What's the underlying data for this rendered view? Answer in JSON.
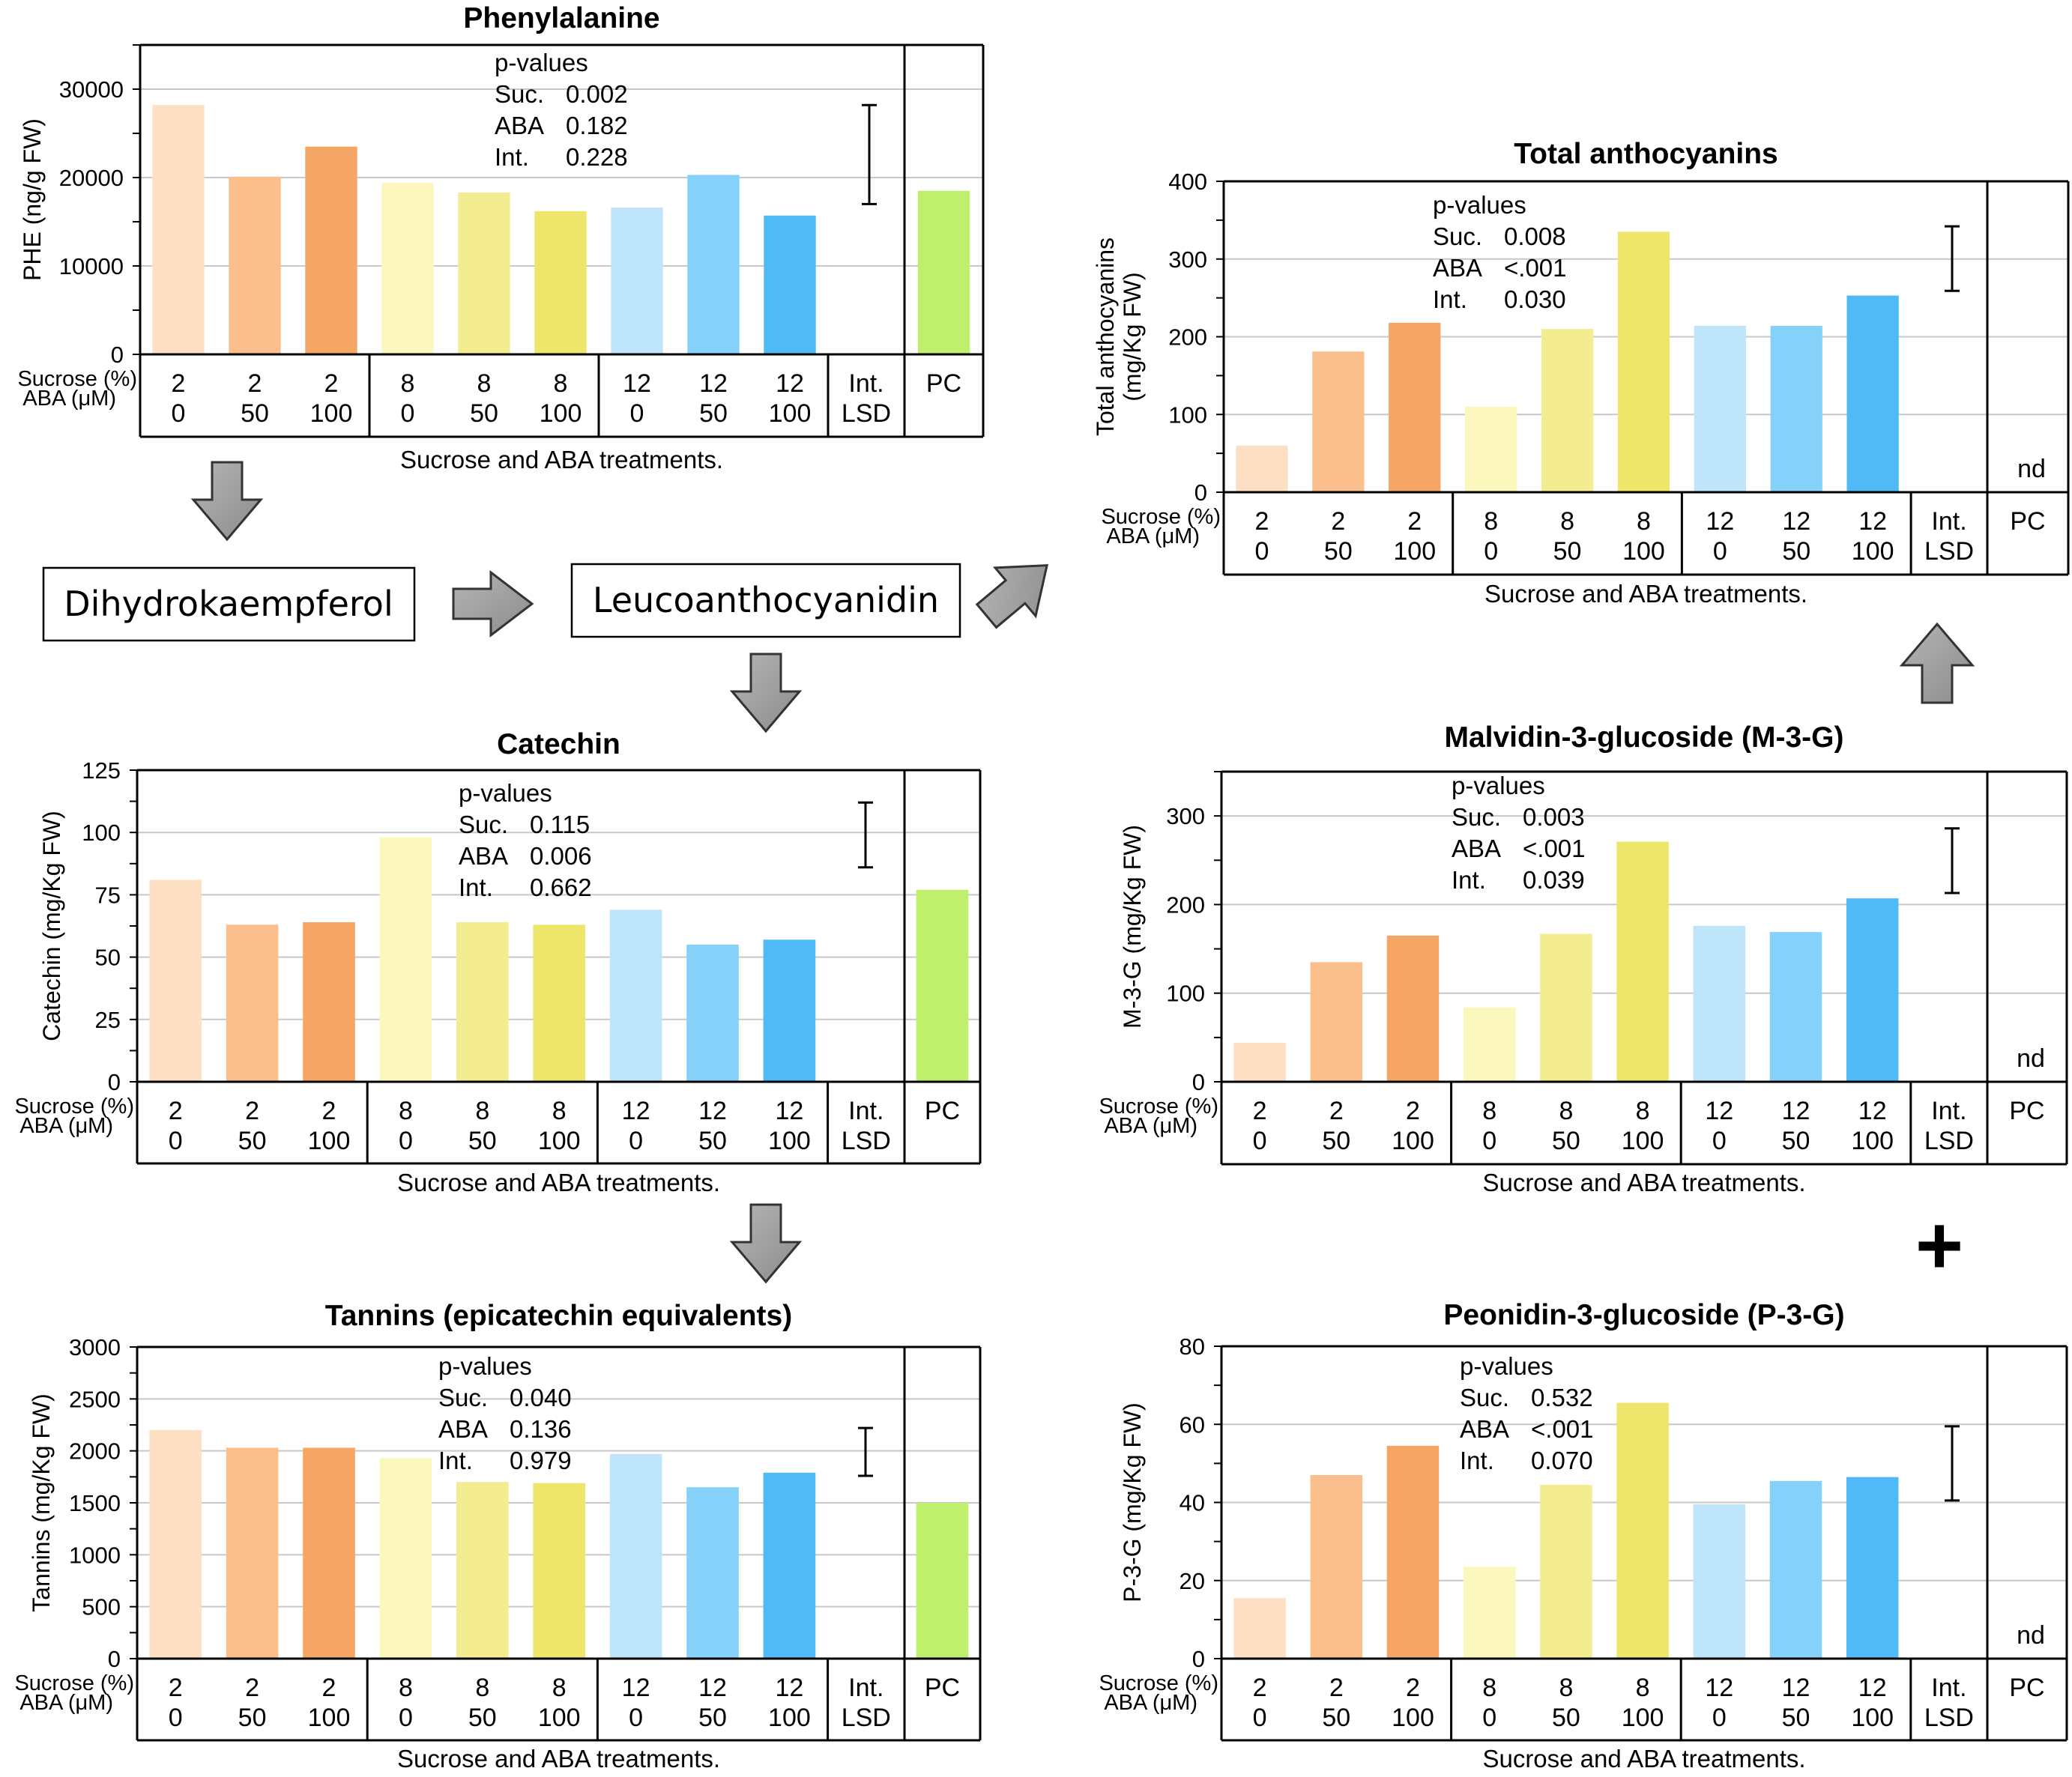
{
  "colors": [
    "#fde0c4",
    "#fbbe8d",
    "#f6a664",
    "#fbf7bd",
    "#f4ec90",
    "#ede66a",
    "#bfe5fa",
    "#86d1fa",
    "#4fbaf5"
  ],
  "pc_color": "#bff06d",
  "pathway": {
    "box1": "Dihydrokaempferol",
    "box2": "Leucoanthocyanidin",
    "plus": "+"
  },
  "treatments": {
    "sucrose_label": "Sucrose (%)",
    "aba_label": "ABA (μM)",
    "xlabel": "Sucrose and ABA treatments.",
    "sucrose": [
      "2",
      "2",
      "2",
      "8",
      "8",
      "8",
      "12",
      "12",
      "12"
    ],
    "aba": [
      "0",
      "50",
      "100",
      "0",
      "50",
      "100",
      "0",
      "50",
      "100"
    ],
    "lsd_top": "Int.",
    "lsd_bottom": "LSD",
    "pc": "PC",
    "nd": "nd"
  },
  "chart_data": [
    {
      "id": "phe",
      "type": "bar",
      "title": "Phenylalanine",
      "ylabel": "PHE (ng/g FW)",
      "ylim": [
        0,
        35000
      ],
      "yticks": [
        "0",
        "10000",
        "20000",
        "30000"
      ],
      "ytick_values": [
        0,
        10000,
        20000,
        30000
      ],
      "values": [
        28200,
        20100,
        23500,
        19400,
        18300,
        16200,
        16600,
        20300,
        15700
      ],
      "pc_value": 18500,
      "lsd": [
        17000,
        28200
      ],
      "pvalues": {
        "header": "p-values",
        "rows": [
          [
            "Suc.",
            "0.002"
          ],
          [
            "ABA",
            "0.182"
          ],
          [
            "Int.",
            "0.228"
          ]
        ]
      }
    },
    {
      "id": "catechin",
      "type": "bar",
      "title": "Catechin",
      "ylabel": "Catechin (mg/Kg FW)",
      "ylim": [
        0,
        125
      ],
      "yticks": [
        "0",
        "25",
        "50",
        "75",
        "100",
        "125"
      ],
      "ytick_values": [
        0,
        25,
        50,
        75,
        100,
        125
      ],
      "values": [
        81,
        63,
        64,
        98,
        64,
        63,
        69,
        55,
        57
      ],
      "pc_value": 77,
      "lsd": [
        86,
        112
      ],
      "pvalues": {
        "header": "p-values",
        "rows": [
          [
            "Suc.",
            "0.115"
          ],
          [
            "ABA",
            "0.006"
          ],
          [
            "Int.",
            "0.662"
          ]
        ]
      }
    },
    {
      "id": "tannins",
      "type": "bar",
      "title": "Tannins (epicatechin equivalents)",
      "ylabel": "Tannins (mg/Kg FW)",
      "ylim": [
        0,
        3000
      ],
      "yticks": [
        "0",
        "500",
        "1000",
        "1500",
        "2000",
        "2500",
        "3000"
      ],
      "ytick_values": [
        0,
        500,
        1000,
        1500,
        2000,
        2500,
        3000
      ],
      "values": [
        2200,
        2030,
        2030,
        1930,
        1700,
        1690,
        1970,
        1650,
        1790
      ],
      "pc_value": 1500,
      "lsd": [
        1760,
        2220
      ],
      "pvalues": {
        "header": "p-values",
        "rows": [
          [
            "Suc.",
            "0.040"
          ],
          [
            "ABA",
            "0.136"
          ],
          [
            "Int.",
            "0.979"
          ]
        ]
      }
    },
    {
      "id": "anthocyanins",
      "type": "bar",
      "title": "Total anthocyanins",
      "ylabel": [
        "Total anthocyanins",
        "(mg/Kg FW)"
      ],
      "ylim": [
        0,
        400
      ],
      "yticks": [
        "0",
        "100",
        "200",
        "300",
        "400"
      ],
      "ytick_values": [
        0,
        100,
        200,
        300,
        400
      ],
      "values": [
        60,
        181,
        218,
        110,
        210,
        335,
        214,
        214,
        253
      ],
      "pc_value": null,
      "lsd": [
        259,
        342
      ],
      "pvalues": {
        "header": "p-values",
        "rows": [
          [
            "Suc.",
            "0.008"
          ],
          [
            "ABA",
            "<.001"
          ],
          [
            "Int.",
            "0.030"
          ]
        ]
      }
    },
    {
      "id": "m3g",
      "type": "bar",
      "title": "Malvidin-3-glucoside  (M-3-G)",
      "ylabel": "M-3-G (mg/Kg FW)",
      "ylim": [
        0,
        350
      ],
      "yticks": [
        "0",
        "100",
        "200",
        "300"
      ],
      "ytick_values": [
        0,
        100,
        200,
        300
      ],
      "values": [
        44,
        135,
        165,
        84,
        167,
        271,
        176,
        169,
        207
      ],
      "pc_value": null,
      "lsd": [
        213,
        286
      ],
      "pvalues": {
        "header": "p-values",
        "rows": [
          [
            "Suc.",
            "0.003"
          ],
          [
            "ABA",
            "<.001"
          ],
          [
            "Int.",
            "0.039"
          ]
        ]
      }
    },
    {
      "id": "p3g",
      "type": "bar",
      "title": "Peonidin-3-glucoside  (P-3-G)",
      "ylabel": "P-3-G (mg/Kg FW)",
      "ylim": [
        0,
        80
      ],
      "yticks": [
        "0",
        "20",
        "40",
        "60",
        "80"
      ],
      "ytick_values": [
        0,
        20,
        40,
        60,
        80
      ],
      "values": [
        15.5,
        47,
        54.5,
        23.5,
        44.5,
        65.5,
        39.5,
        45.5,
        46.5
      ],
      "pc_value": null,
      "lsd": [
        40.5,
        59.5
      ],
      "pvalues": {
        "header": "p-values",
        "rows": [
          [
            "Suc.",
            "0.532"
          ],
          [
            "ABA",
            "<.001"
          ],
          [
            "Int.",
            "0.070"
          ]
        ]
      }
    }
  ]
}
